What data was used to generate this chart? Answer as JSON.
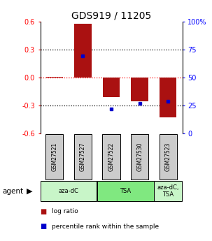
{
  "title": "GDS919 / 11205",
  "samples": [
    "GSM27521",
    "GSM27527",
    "GSM27522",
    "GSM27530",
    "GSM27523"
  ],
  "log_ratios": [
    0.003,
    0.575,
    -0.215,
    -0.255,
    -0.43
  ],
  "percentile_ranks": [
    null,
    0.695,
    0.215,
    0.265,
    0.285
  ],
  "groups": [
    {
      "label": "aza-dC",
      "color": "#c8f5c8",
      "span": [
        0,
        2
      ]
    },
    {
      "label": "TSA",
      "color": "#80e880",
      "span": [
        2,
        4
      ]
    },
    {
      "label": "aza-dC,\nTSA",
      "color": "#c8f5c8",
      "span": [
        4,
        5
      ]
    }
  ],
  "bar_color": "#aa1111",
  "dot_color": "#0000cc",
  "ylim": [
    -0.6,
    0.6
  ],
  "yticks_left": [
    -0.6,
    -0.3,
    0.0,
    0.3,
    0.6
  ],
  "yticks_right": [
    0,
    25,
    50,
    75,
    100
  ],
  "hlines": [
    -0.3,
    0.0,
    0.3
  ],
  "legend_items": [
    {
      "color": "#aa1111",
      "label": "log ratio"
    },
    {
      "color": "#0000cc",
      "label": "percentile rank within the sample"
    }
  ],
  "bar_width": 0.6,
  "agent_label": "agent",
  "background_color": "#ffffff",
  "sample_box_color": "#cccccc",
  "title_fontsize": 10
}
